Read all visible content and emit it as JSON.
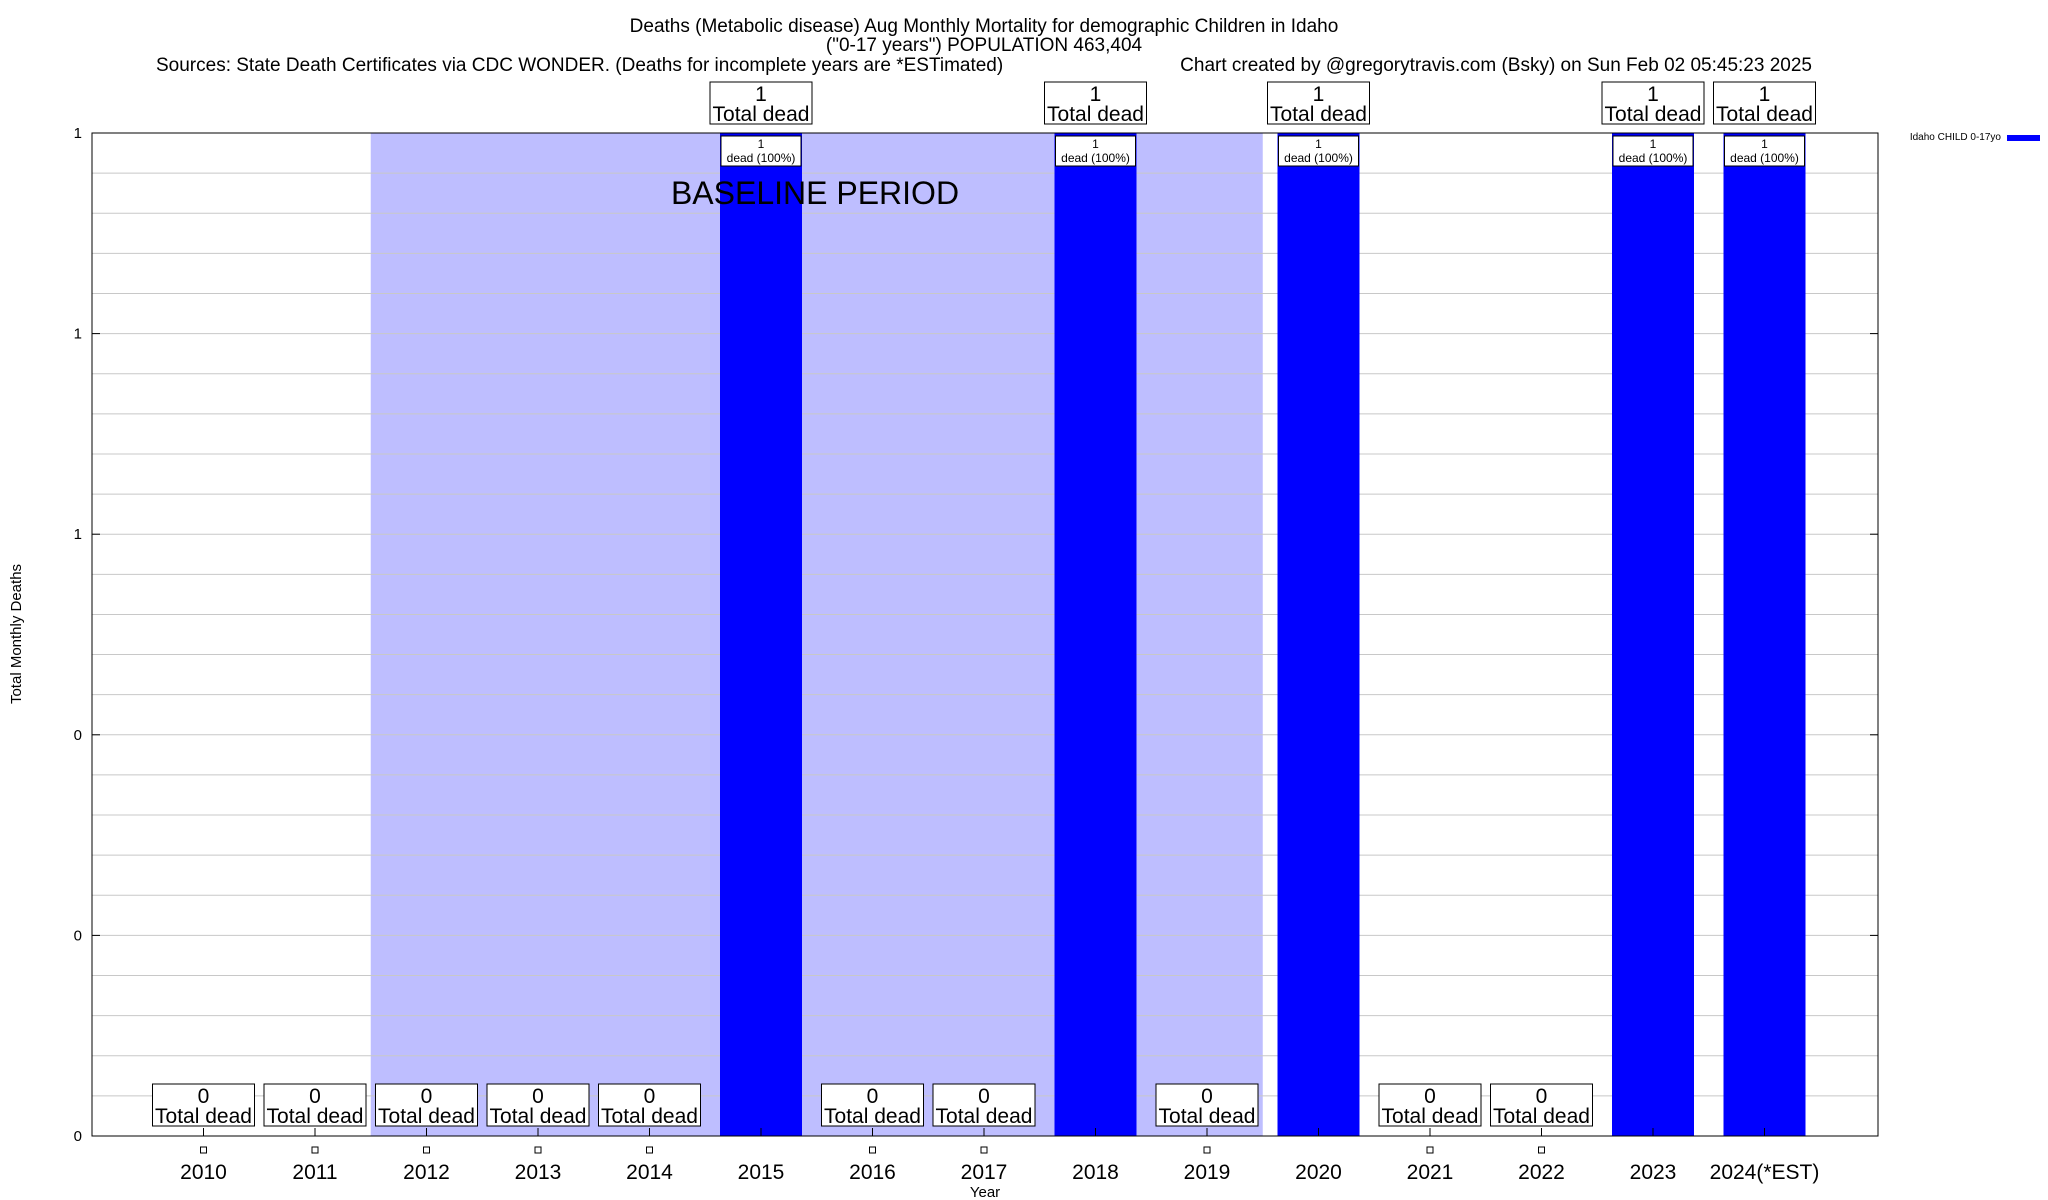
{
  "chart_data": {
    "type": "bar",
    "title": "Deaths (Metabolic disease) Aug Monthly Mortality for demographic Children in Idaho",
    "subtitle": "(\"0-17 years\") POPULATION 463,404",
    "sources": "Sources: State Death Certificates via CDC WONDER. (Deaths for incomplete years are *ESTimated)",
    "credit": "Chart created by @gregorytravis.com (Bsky) on Sun Feb 02 05:45:23 2025",
    "xlabel": "Year",
    "ylabel": "Total Monthly Deaths",
    "categories": [
      "2010",
      "2011",
      "2012",
      "2013",
      "2014",
      "2015",
      "2016",
      "2017",
      "2018",
      "2019",
      "2020",
      "2021",
      "2022",
      "2023",
      "2024(*EST)"
    ],
    "series": [
      {
        "name": "Idaho CHILD 0-17yo",
        "values": [
          0,
          0,
          0,
          0,
          0,
          1,
          0,
          0,
          1,
          0,
          1,
          0,
          0,
          1,
          1
        ],
        "color": "#0000ff"
      }
    ],
    "ylim": [
      0,
      1
    ],
    "ytick_labels": [
      "0",
      "0",
      "0",
      "1",
      "1",
      "1"
    ],
    "grid": true,
    "legend_position": "top-right",
    "baseline_period": {
      "label": "BASELINE PERIOD",
      "start": "2012",
      "end": "2019",
      "color": "#bebeff"
    },
    "total_label": "Total dead",
    "bar_labels": [
      null,
      null,
      null,
      null,
      null,
      {
        "count": "1",
        "text": "dead (100%)"
      },
      null,
      null,
      {
        "count": "1",
        "text": "dead (100%)"
      },
      null,
      {
        "count": "1",
        "text": "dead (100%)"
      },
      null,
      null,
      {
        "count": "1",
        "text": "dead (100%)"
      },
      {
        "count": "1",
        "text": "dead (100%)"
      }
    ]
  }
}
